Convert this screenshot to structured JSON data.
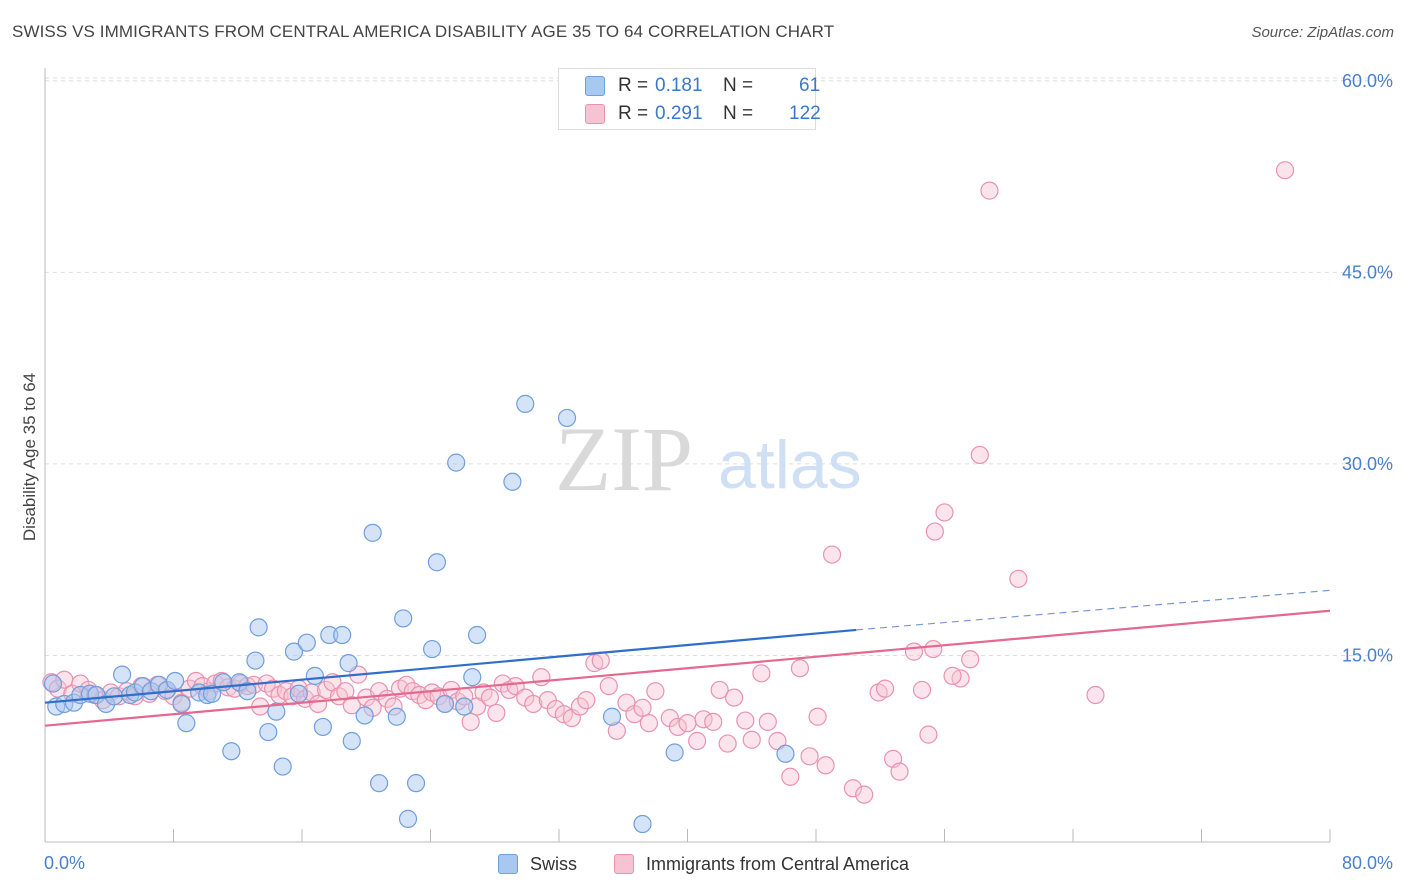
{
  "title": "SWISS VS IMMIGRANTS FROM CENTRAL AMERICA DISABILITY AGE 35 TO 64 CORRELATION CHART",
  "source": "Source: ZipAtlas.com",
  "watermark": {
    "zip": "ZIP",
    "atlas": "atlas"
  },
  "legend": {
    "swiss": {
      "r_label": "R =",
      "r_value": "0.181",
      "n_label": "N =",
      "n_value": "61"
    },
    "immigrants": {
      "r_label": "R =",
      "r_value": "0.291",
      "n_label": "N =",
      "n_value": "122"
    }
  },
  "bottom_legend": {
    "swiss": "Swiss",
    "immigrants": "Immigrants from Central America"
  },
  "colors": {
    "swiss_fill": "#a9c8ef",
    "swiss_stroke": "#6f9fdc",
    "swiss_line": "#2f6ecb",
    "imm_fill": "#f6c3d3",
    "imm_stroke": "#e992b0",
    "imm_line": "#e4688f",
    "tick_text": "#4a7fcc",
    "grid": "#dddddd"
  },
  "chart_data": {
    "type": "scatter",
    "title": "SWISS VS IMMIGRANTS FROM CENTRAL AMERICA DISABILITY AGE 35 TO 64 CORRELATION CHART",
    "xlabel": "",
    "ylabel": "Disability Age 35 to 64",
    "xlim": [
      0,
      80
    ],
    "ylim": [
      0,
      62
    ],
    "x_tick_labels": [
      "0.0%",
      "80.0%"
    ],
    "y_ticks": [
      15,
      30,
      45,
      60
    ],
    "y_tick_labels": [
      "15.0%",
      "30.0%",
      "45.0%",
      "60.0%"
    ],
    "series": [
      {
        "name": "Swiss",
        "points": [
          [
            0.5,
            12.8
          ],
          [
            0.7,
            11.0
          ],
          [
            1.2,
            11.2
          ],
          [
            1.8,
            11.3
          ],
          [
            2.2,
            11.9
          ],
          [
            2.8,
            12.0
          ],
          [
            3.2,
            11.9
          ],
          [
            3.8,
            11.2
          ],
          [
            4.3,
            11.8
          ],
          [
            4.8,
            13.5
          ],
          [
            5.3,
            11.9
          ],
          [
            5.6,
            12.1
          ],
          [
            6.1,
            12.6
          ],
          [
            6.6,
            12.2
          ],
          [
            7.1,
            12.7
          ],
          [
            7.6,
            12.3
          ],
          [
            8.1,
            13.0
          ],
          [
            8.5,
            11.2
          ],
          [
            8.8,
            9.7
          ],
          [
            9.6,
            12.1
          ],
          [
            10.1,
            11.9
          ],
          [
            10.4,
            12.0
          ],
          [
            11.1,
            12.9
          ],
          [
            11.6,
            7.5
          ],
          [
            12.1,
            12.9
          ],
          [
            12.6,
            12.2
          ],
          [
            13.1,
            14.6
          ],
          [
            13.3,
            17.2
          ],
          [
            13.9,
            9.0
          ],
          [
            14.4,
            10.6
          ],
          [
            14.8,
            6.3
          ],
          [
            15.5,
            15.3
          ],
          [
            15.8,
            12.0
          ],
          [
            16.3,
            16.0
          ],
          [
            16.8,
            13.4
          ],
          [
            17.3,
            9.4
          ],
          [
            17.7,
            16.6
          ],
          [
            18.5,
            16.6
          ],
          [
            18.9,
            14.4
          ],
          [
            19.1,
            8.3
          ],
          [
            19.9,
            10.3
          ],
          [
            20.4,
            24.6
          ],
          [
            20.8,
            5.0
          ],
          [
            21.9,
            10.2
          ],
          [
            22.3,
            17.9
          ],
          [
            22.6,
            2.2
          ],
          [
            23.1,
            5.0
          ],
          [
            24.1,
            15.5
          ],
          [
            24.4,
            22.3
          ],
          [
            24.9,
            11.2
          ],
          [
            25.6,
            30.1
          ],
          [
            26.1,
            11.0
          ],
          [
            26.6,
            13.3
          ],
          [
            26.9,
            16.6
          ],
          [
            29.1,
            28.6
          ],
          [
            29.9,
            34.7
          ],
          [
            32.5,
            33.6
          ],
          [
            35.3,
            10.2
          ],
          [
            37.2,
            1.8
          ],
          [
            39.2,
            7.4
          ],
          [
            46.1,
            7.3
          ]
        ],
        "trend": {
          "x": [
            0,
            50.5
          ],
          "y": [
            11.3,
            17.0
          ]
        },
        "trend_extension": {
          "x": [
            50.5,
            80
          ],
          "y": [
            17.0,
            20.1
          ]
        }
      },
      {
        "name": "Immigrants from Central America",
        "points": [
          [
            0.4,
            12.9
          ],
          [
            0.8,
            12.4
          ],
          [
            1.2,
            13.1
          ],
          [
            1.7,
            12.0
          ],
          [
            2.2,
            12.8
          ],
          [
            2.7,
            12.3
          ],
          [
            3.1,
            11.9
          ],
          [
            3.6,
            11.5
          ],
          [
            4.1,
            12.1
          ],
          [
            4.6,
            11.8
          ],
          [
            5.1,
            12.2
          ],
          [
            5.6,
            11.8
          ],
          [
            6.0,
            12.6
          ],
          [
            6.5,
            12.0
          ],
          [
            7.0,
            12.7
          ],
          [
            7.5,
            12.2
          ],
          [
            8.0,
            11.8
          ],
          [
            8.5,
            11.3
          ],
          [
            9.0,
            12.4
          ],
          [
            9.4,
            13.0
          ],
          [
            9.8,
            12.6
          ],
          [
            10.2,
            12.2
          ],
          [
            10.6,
            12.8
          ],
          [
            11.0,
            13.0
          ],
          [
            11.4,
            12.5
          ],
          [
            11.8,
            12.4
          ],
          [
            12.2,
            12.8
          ],
          [
            12.6,
            12.6
          ],
          [
            13.0,
            12.7
          ],
          [
            13.4,
            11.0
          ],
          [
            13.8,
            12.8
          ],
          [
            14.2,
            12.4
          ],
          [
            14.6,
            11.9
          ],
          [
            15.0,
            12.2
          ],
          [
            15.4,
            11.8
          ],
          [
            15.8,
            12.4
          ],
          [
            16.2,
            11.6
          ],
          [
            16.6,
            12.1
          ],
          [
            17.0,
            11.2
          ],
          [
            17.5,
            12.3
          ],
          [
            17.9,
            12.9
          ],
          [
            18.3,
            11.8
          ],
          [
            18.7,
            12.2
          ],
          [
            19.1,
            11.1
          ],
          [
            19.5,
            13.5
          ],
          [
            20.0,
            11.7
          ],
          [
            20.4,
            10.9
          ],
          [
            20.8,
            12.2
          ],
          [
            21.3,
            11.6
          ],
          [
            21.7,
            11.0
          ],
          [
            22.1,
            12.4
          ],
          [
            22.5,
            12.7
          ],
          [
            22.9,
            12.2
          ],
          [
            23.3,
            11.9
          ],
          [
            23.7,
            11.5
          ],
          [
            24.1,
            12.1
          ],
          [
            24.5,
            11.8
          ],
          [
            24.9,
            11.2
          ],
          [
            25.3,
            12.3
          ],
          [
            25.7,
            11.4
          ],
          [
            26.1,
            11.8
          ],
          [
            26.5,
            9.8
          ],
          [
            26.9,
            11.0
          ],
          [
            27.3,
            12.1
          ],
          [
            27.7,
            11.7
          ],
          [
            28.1,
            10.5
          ],
          [
            28.5,
            12.8
          ],
          [
            28.9,
            12.3
          ],
          [
            29.3,
            12.6
          ],
          [
            29.9,
            11.7
          ],
          [
            30.4,
            11.2
          ],
          [
            30.9,
            13.3
          ],
          [
            31.3,
            11.5
          ],
          [
            31.8,
            10.8
          ],
          [
            32.3,
            10.4
          ],
          [
            32.8,
            10.1
          ],
          [
            33.3,
            11.0
          ],
          [
            33.7,
            11.5
          ],
          [
            34.2,
            14.4
          ],
          [
            34.6,
            14.6
          ],
          [
            35.1,
            12.6
          ],
          [
            35.6,
            9.1
          ],
          [
            36.2,
            11.3
          ],
          [
            36.7,
            10.4
          ],
          [
            37.2,
            10.9
          ],
          [
            37.6,
            9.7
          ],
          [
            38.0,
            12.2
          ],
          [
            38.9,
            10.1
          ],
          [
            39.4,
            9.4
          ],
          [
            40.0,
            9.7
          ],
          [
            40.6,
            8.3
          ],
          [
            41.0,
            10.0
          ],
          [
            41.6,
            9.8
          ],
          [
            42.0,
            12.3
          ],
          [
            42.5,
            8.1
          ],
          [
            42.9,
            11.7
          ],
          [
            43.6,
            9.9
          ],
          [
            44.0,
            8.4
          ],
          [
            44.6,
            13.6
          ],
          [
            45.0,
            9.8
          ],
          [
            45.6,
            8.3
          ],
          [
            46.4,
            5.5
          ],
          [
            47.0,
            14.0
          ],
          [
            47.6,
            7.1
          ],
          [
            48.1,
            10.2
          ],
          [
            48.6,
            6.4
          ],
          [
            49.0,
            22.9
          ],
          [
            50.3,
            4.6
          ],
          [
            51.0,
            4.1
          ],
          [
            51.9,
            12.1
          ],
          [
            52.3,
            12.4
          ],
          [
            52.8,
            6.9
          ],
          [
            53.2,
            5.9
          ],
          [
            54.1,
            15.3
          ],
          [
            54.6,
            12.3
          ],
          [
            55.0,
            8.8
          ],
          [
            55.4,
            24.7
          ],
          [
            56.0,
            26.2
          ],
          [
            57.0,
            13.2
          ],
          [
            57.6,
            14.7
          ],
          [
            58.2,
            30.7
          ],
          [
            58.8,
            51.4
          ],
          [
            60.6,
            21.0
          ],
          [
            65.4,
            11.9
          ],
          [
            77.2,
            53.0
          ],
          [
            55.3,
            15.5
          ],
          [
            56.5,
            13.4
          ]
        ],
        "trend": {
          "x": [
            0,
            80
          ],
          "y": [
            9.5,
            18.5
          ]
        }
      }
    ]
  }
}
